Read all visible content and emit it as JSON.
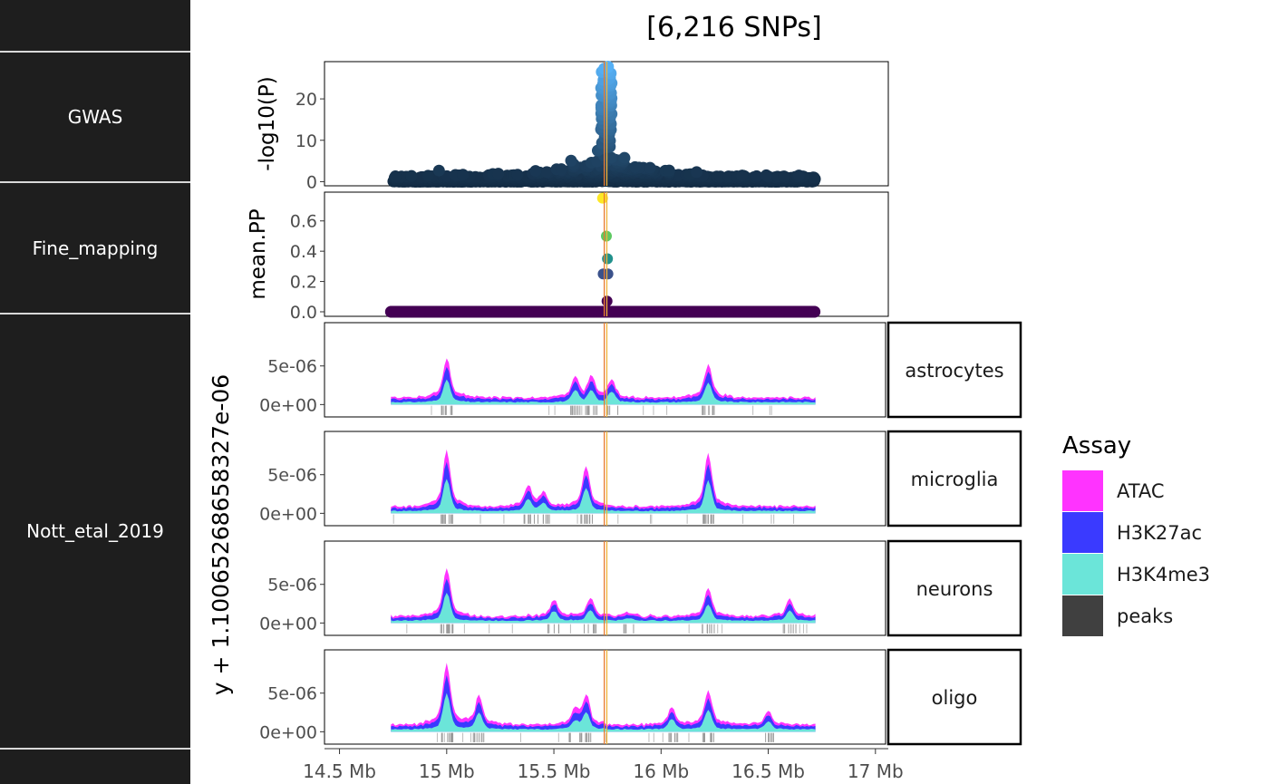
{
  "title": "[6,216 SNPs]",
  "track_labels": {
    "empty_top": "",
    "gwas": "GWAS",
    "fine_mapping": "Fine_mapping",
    "nott": "Nott_etal_2019",
    "empty_bottom": ""
  },
  "chart_data": {
    "x_axis": {
      "ticks": [
        14.5,
        15,
        15.5,
        16,
        16.5,
        17
      ],
      "tick_labels": [
        "14.5 Mb",
        "15 Mb",
        "15.5 Mb",
        "16 Mb",
        "16.5 Mb",
        "17 Mb"
      ],
      "xlim": [
        14.43,
        17.06
      ]
    },
    "lead_snp_lines": [
      15.735,
      15.747
    ],
    "gwas": {
      "type": "scatter",
      "ylabel": "-log10(P)",
      "ylim": [
        -1,
        29
      ],
      "yticks": [
        0,
        10,
        20
      ],
      "range": [
        14.75,
        16.72
      ],
      "peak": {
        "x": 15.745,
        "max_y": 28
      },
      "colors": {
        "low": "#132B43",
        "high": "#56B1F7"
      }
    },
    "fine_mapping": {
      "type": "scatter",
      "ylabel": "mean.PP",
      "ylim": [
        -0.03,
        0.79
      ],
      "yticks": [
        0.0,
        0.2,
        0.4,
        0.6
      ],
      "tick_labels": [
        "0.0",
        "0.2",
        "0.4",
        "0.6"
      ],
      "range": [
        14.74,
        16.72
      ],
      "points": [
        {
          "x": 15.727,
          "y": 0.75,
          "color": "#FDE725"
        },
        {
          "x": 15.745,
          "y": 0.5,
          "color": "#5EC962"
        },
        {
          "x": 15.75,
          "y": 0.35,
          "color": "#21918C"
        },
        {
          "x": 15.73,
          "y": 0.25,
          "color": "#3B528B"
        },
        {
          "x": 15.752,
          "y": 0.25,
          "color": "#3B528B"
        },
        {
          "x": 15.748,
          "y": 0.07,
          "color": "#440154"
        }
      ],
      "baseline_color": "#440154"
    },
    "epigenomic": {
      "type": "area",
      "ylabel": "y + 1.10065268658327e-06",
      "ylim": [
        -1.6e-06,
        1.06e-05
      ],
      "yticks": [
        0,
        5e-06
      ],
      "tick_labels": [
        "0e+00",
        "5e-06"
      ],
      "range": [
        14.74,
        16.72
      ],
      "legend": {
        "title": "Assay",
        "items": [
          {
            "name": "ATAC",
            "color": "#FF33FF"
          },
          {
            "name": "H3K27ac",
            "color": "#3A3AFF"
          },
          {
            "name": "H3K4me3",
            "color": "#6BE5D9"
          },
          {
            "name": "peaks",
            "color": "#404040"
          }
        ]
      },
      "cell_types": [
        {
          "name": "astrocytes",
          "peaks": [
            [
              15.0,
              3.5
            ],
            [
              15.6,
              1.8
            ],
            [
              15.675,
              1.8
            ],
            [
              15.77,
              1.6
            ],
            [
              16.22,
              3.0
            ]
          ]
        },
        {
          "name": "microglia",
          "peaks": [
            [
              15.0,
              5.0
            ],
            [
              15.38,
              1.8
            ],
            [
              15.45,
              1.2
            ],
            [
              15.65,
              3.6
            ],
            [
              16.22,
              4.8
            ]
          ]
        },
        {
          "name": "neurons",
          "peaks": [
            [
              15.0,
              4.4
            ],
            [
              15.5,
              1.5
            ],
            [
              15.67,
              1.6
            ],
            [
              15.85,
              0.4
            ],
            [
              16.22,
              2.5
            ],
            [
              16.6,
              1.5
            ]
          ]
        },
        {
          "name": "oligo",
          "peaks": [
            [
              15.0,
              5.6
            ],
            [
              15.15,
              2.6
            ],
            [
              15.6,
              1.3
            ],
            [
              15.65,
              2.6
            ],
            [
              16.05,
              1.6
            ],
            [
              16.22,
              3.1
            ],
            [
              16.5,
              1.2
            ]
          ]
        }
      ]
    }
  }
}
